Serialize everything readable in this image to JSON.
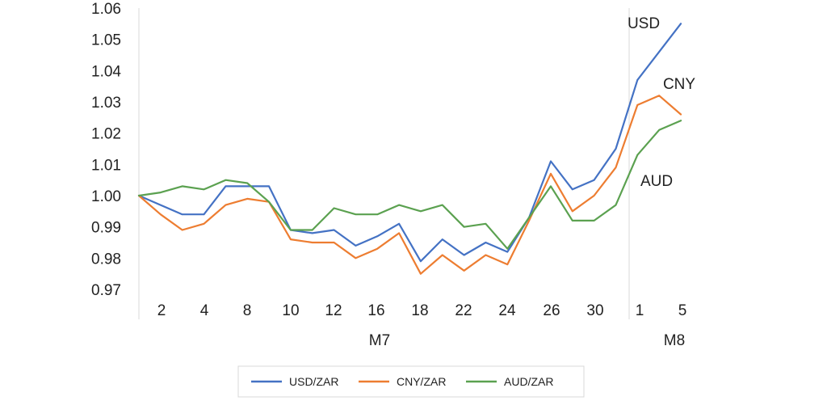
{
  "chart_data": {
    "type": "line",
    "title": "",
    "xlabel": "",
    "ylabel": "",
    "ylim": [
      0.97,
      1.06
    ],
    "yticks": [
      "1.06",
      "1.05",
      "1.04",
      "1.03",
      "1.02",
      "1.01",
      "1.00",
      "0.99",
      "0.98",
      "0.97"
    ],
    "grid": false,
    "legend_position": "bottom",
    "month_labels": [
      {
        "label": "M7"
      },
      {
        "label": "M8"
      }
    ],
    "x_tick_labels": [
      "2",
      "4",
      "8",
      "10",
      "12",
      "16",
      "18",
      "22",
      "24",
      "26",
      "30",
      "1",
      "5"
    ],
    "series": [
      {
        "name": "USD/ZAR",
        "end_label": "USD",
        "color": "#4472C4",
        "values": [
          1.0,
          0.997,
          0.994,
          0.994,
          1.003,
          1.003,
          1.003,
          0.989,
          0.988,
          0.989,
          0.984,
          0.987,
          0.991,
          0.979,
          0.986,
          0.981,
          0.985,
          0.982,
          0.993,
          1.011,
          1.002,
          1.005,
          1.015,
          1.037,
          1.046,
          1.055
        ]
      },
      {
        "name": "CNY/ZAR",
        "end_label": "CNY",
        "color": "#ED7D31",
        "values": [
          1.0,
          0.994,
          0.989,
          0.991,
          0.997,
          0.999,
          0.998,
          0.986,
          0.985,
          0.985,
          0.98,
          0.983,
          0.988,
          0.975,
          0.981,
          0.976,
          0.981,
          0.978,
          0.992,
          1.007,
          0.995,
          1.0,
          1.009,
          1.029,
          1.032,
          1.026
        ]
      },
      {
        "name": "AUD/ZAR",
        "end_label": "AUD",
        "color": "#5BA150",
        "values": [
          1.0,
          1.001,
          1.003,
          1.002,
          1.005,
          1.004,
          0.998,
          0.989,
          0.989,
          0.996,
          0.994,
          0.994,
          0.997,
          0.995,
          0.997,
          0.99,
          0.991,
          0.983,
          0.993,
          1.003,
          0.992,
          0.992,
          0.997,
          1.013,
          1.021,
          1.024
        ]
      }
    ]
  }
}
